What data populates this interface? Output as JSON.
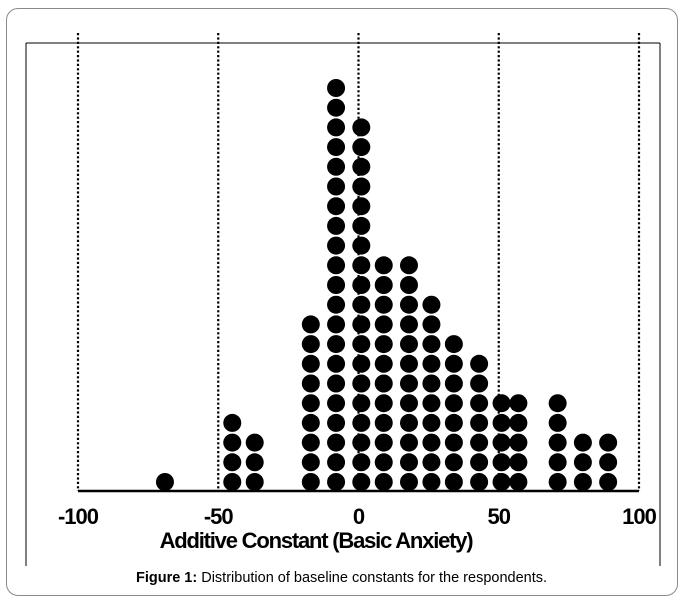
{
  "chart_data": {
    "type": "scatter",
    "subtype": "dot-plot",
    "xlabel": "Additive Constant (Basic Anxiety)",
    "ylabel": "",
    "xlim": [
      -100,
      100
    ],
    "xticks": [
      -100,
      -50,
      0,
      50,
      100
    ],
    "xtick_labels": [
      "-100",
      "-50",
      "0",
      "50",
      "100"
    ],
    "vertical_dotted_lines_at": [
      -100,
      -50,
      0,
      50,
      100
    ],
    "grid": false,
    "legend": "none",
    "marker_color": "#000000",
    "columns": [
      {
        "x": -69,
        "count": 1
      },
      {
        "x": -45,
        "count": 4
      },
      {
        "x": -37,
        "count": 3
      },
      {
        "x": -17,
        "count": 9
      },
      {
        "x": -8,
        "count": 21
      },
      {
        "x": 1,
        "count": 19
      },
      {
        "x": 9,
        "count": 12
      },
      {
        "x": 18,
        "count": 12
      },
      {
        "x": 26,
        "count": 10
      },
      {
        "x": 34,
        "count": 8
      },
      {
        "x": 43,
        "count": 7
      },
      {
        "x": 51,
        "count": 5
      },
      {
        "x": 57,
        "count": 5
      },
      {
        "x": 71,
        "count": 5
      },
      {
        "x": 80,
        "count": 3
      },
      {
        "x": 89,
        "count": 3
      }
    ]
  },
  "caption": {
    "label": "Figure 1:",
    "text": "Distribution of baseline constants for the respondents."
  }
}
